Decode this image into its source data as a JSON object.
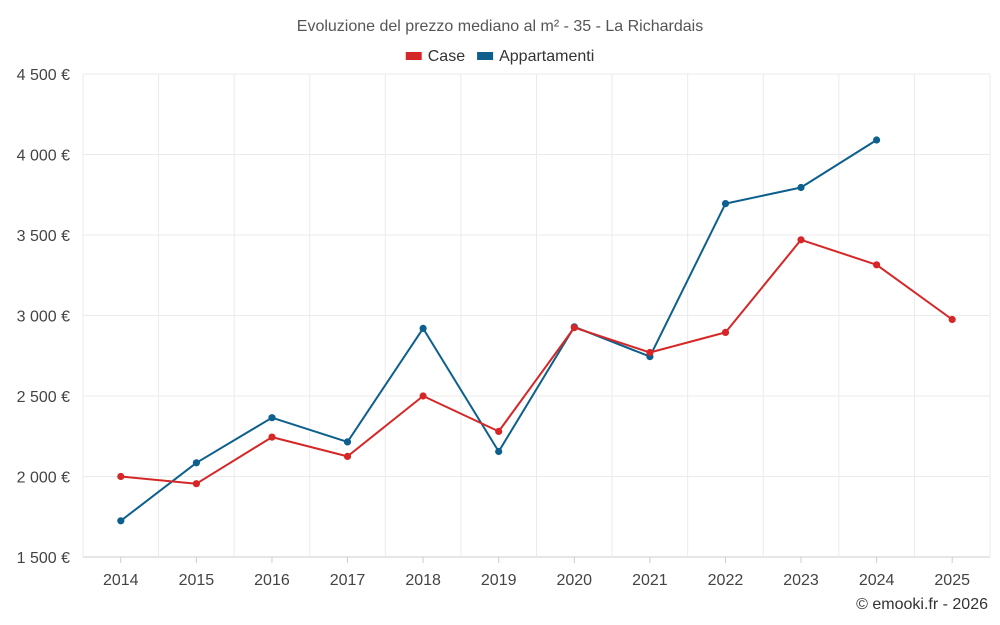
{
  "chart_data": {
    "type": "line",
    "title": "Evoluzione del prezzo mediano al m² - 35 - La Richardais",
    "x": [
      "2014",
      "2015",
      "2016",
      "2017",
      "2018",
      "2019",
      "2020",
      "2021",
      "2022",
      "2023",
      "2024",
      "2025"
    ],
    "series": [
      {
        "name": "Case",
        "color": "#d62728",
        "values": [
          2000,
          1955,
          2245,
          2125,
          2500,
          2280,
          2925,
          2770,
          2895,
          3470,
          3315,
          2975
        ]
      },
      {
        "name": "Appartamenti",
        "color": "#0d5f8e",
        "values": [
          1725,
          2085,
          2365,
          2215,
          2920,
          2155,
          2930,
          2745,
          3695,
          3795,
          4090,
          null
        ]
      }
    ],
    "ylim": [
      1500,
      4500
    ],
    "yticks": [
      {
        "value": 1500,
        "label": "1 500 €"
      },
      {
        "value": 2000,
        "label": "2 000 €"
      },
      {
        "value": 2500,
        "label": "2 500 €"
      },
      {
        "value": 3000,
        "label": "3 000 €"
      },
      {
        "value": 3500,
        "label": "3 500 €"
      },
      {
        "value": 4000,
        "label": "4 000 €"
      },
      {
        "value": 4500,
        "label": "4 500 €"
      }
    ],
    "xlabel": "",
    "ylabel": "",
    "legend": "top-center",
    "grid": true
  },
  "credit": "© emooki.fr - 2026"
}
